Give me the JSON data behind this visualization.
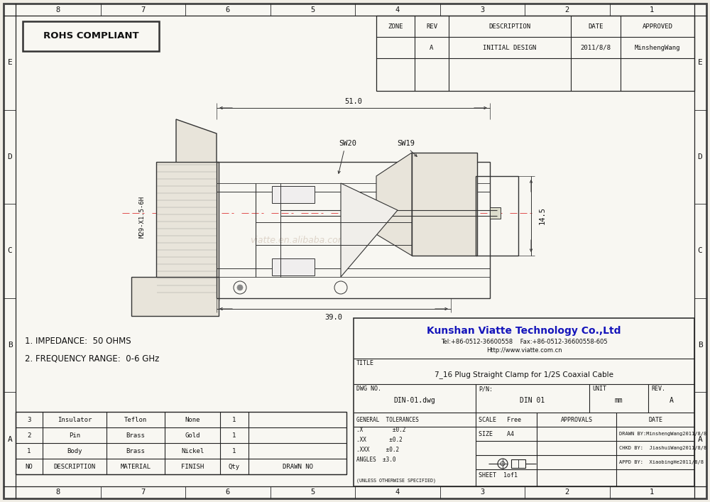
{
  "bg_color": "#f0ede5",
  "paper_color": "#f8f7f2",
  "lc": "#222222",
  "title_company": "Kunshan Viatte Technology Co.,Ltd",
  "title_company_color": "#1515bb",
  "tel": "Tel:+86-0512-36600558    Fax:+86-0512-36600558-605",
  "website": "Http://www.viatte.com.cn",
  "drawing_title": "7_16 Plug Straight Clamp for 1/2S Coaxial Cable",
  "dwg_no": "DIN-01.dwg",
  "pn": "DIN 01",
  "unit": "mm",
  "rev": "A",
  "scale": "Free",
  "size": "A4",
  "sheet": "1of1",
  "drawn_by": "DRAWN BY:MinshengWang2011/8/8",
  "chkd_by": "CHKD BY:  JiashuiWang2011/8/8",
  "appd_by": "APPD BY:  XiaobingHe2011/8/8",
  "rohs": "ROHS COMPLIANT",
  "zone_hdr": "ZONE",
  "rev_hdr": "REV",
  "desc_hdr": "DESCRIPTION",
  "date_hdr": "DATE",
  "approved_hdr": "APPROVED",
  "rev_entry": "A",
  "desc_entry": "INITIAL DESIGN",
  "date_entry": "2011/8/8",
  "approved_entry": "MinshengWang",
  "notes": [
    "1. IMPEDANCE:  50 OHMS",
    "2. FREQUENCY RANGE:  0-6 GHz"
  ],
  "bom_headers": [
    "NO",
    "DESCRIPTION",
    "MATERIAL",
    "FINISH",
    "Qty",
    "DRAWN NO"
  ],
  "bom_rows": [
    [
      "3",
      "Insulator",
      "Teflon",
      "None",
      "1",
      ""
    ],
    [
      "2",
      "Pin",
      "Brass",
      "Gold",
      "1",
      ""
    ],
    [
      "1",
      "Body",
      "Brass",
      "Nickel",
      "1",
      ""
    ]
  ],
  "col_labels": [
    "8",
    "7",
    "6",
    "5",
    "4",
    "3",
    "2",
    "1"
  ],
  "row_labels": [
    "E",
    "D",
    "C",
    "B",
    "A"
  ],
  "dim_51": "51.0",
  "dim_39": "39.0",
  "dim_145": "14.5",
  "dim_thread": "M29-X1.5-6H",
  "sw20": "SW20",
  "sw19": "SW19",
  "watermark": "viatte.en.alibaba.com",
  "tol_lines": [
    ".X         +0.2",
    ".XX       +0.2",
    ".XXX     +0.2",
    " ANGLES  +3.0"
  ],
  "tol_note": "(UNLESS OTHERWISE SPECIFIED)",
  "gt_label": "GENERAL  TOLERANCES",
  "approvals_label": "APPROVALS",
  "date_label2": "DATE",
  "title_label": "TITLE",
  "dwg_label": "DWG NO.",
  "pn_label": "P/N:",
  "unit_label": "UNIT",
  "rev_label": "REV.",
  "scale_label": "SCALE",
  "size_label": "SIZE"
}
